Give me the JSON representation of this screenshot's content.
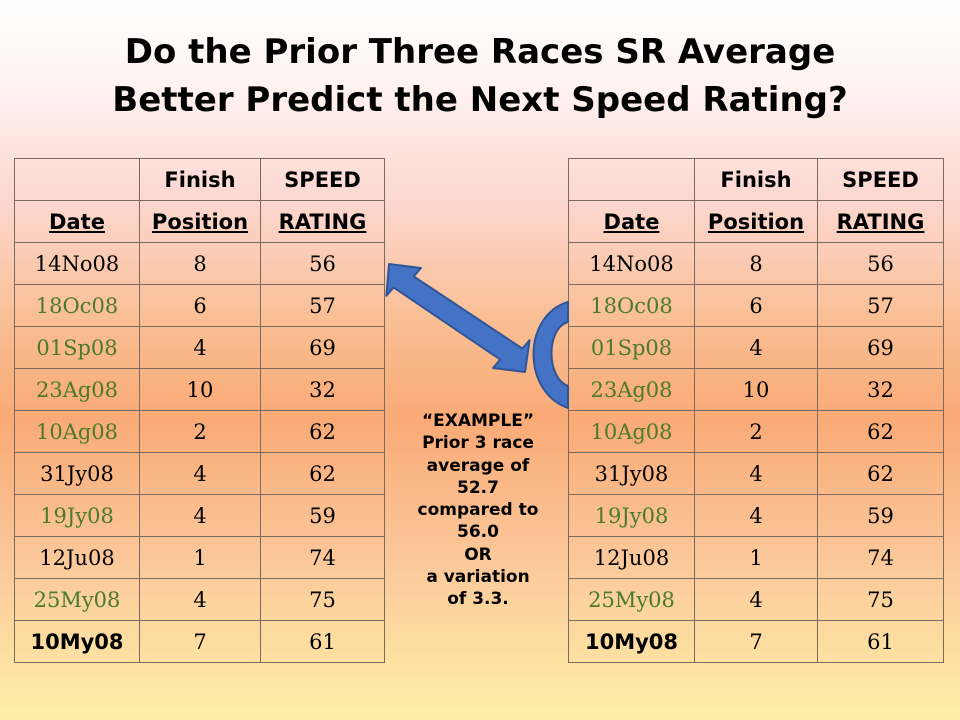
{
  "title": {
    "line1": "Do the Prior Three Races SR Average",
    "line2": "Better Predict the Next Speed Rating?"
  },
  "table": {
    "header_row1": [
      "",
      "Finish",
      "SPEED"
    ],
    "header_row2": [
      "Date",
      "Position",
      "RATING"
    ],
    "rows": [
      {
        "date": "14No08",
        "position": "8",
        "rating": "56"
      },
      {
        "date": "18Oc08",
        "position": "6",
        "rating": "57"
      },
      {
        "date": "01Sp08",
        "position": "4",
        "rating": "69"
      },
      {
        "date": "23Ag08",
        "position": "10",
        "rating": "32"
      },
      {
        "date": "10Ag08",
        "position": "2",
        "rating": "62"
      },
      {
        "date": "31Jy08",
        "position": "4",
        "rating": "62"
      },
      {
        "date": "19Jy08",
        "position": "4",
        "rating": "59"
      },
      {
        "date": "12Ju08",
        "position": "1",
        "rating": "74"
      },
      {
        "date": "25My08",
        "position": "4",
        "rating": "75"
      },
      {
        "date": "10My08",
        "position": "7",
        "rating": "61"
      }
    ]
  },
  "example_text": {
    "lines": [
      "“EXAMPLE”",
      "Prior 3 race",
      "average of",
      "52.7",
      "compared to",
      "56.0",
      "OR",
      "a variation",
      "of 3.3."
    ]
  },
  "colors": {
    "green_date": "#4a7a2a",
    "arrow_blue": "#4472c4",
    "arrow_outline": "#2f5597"
  }
}
